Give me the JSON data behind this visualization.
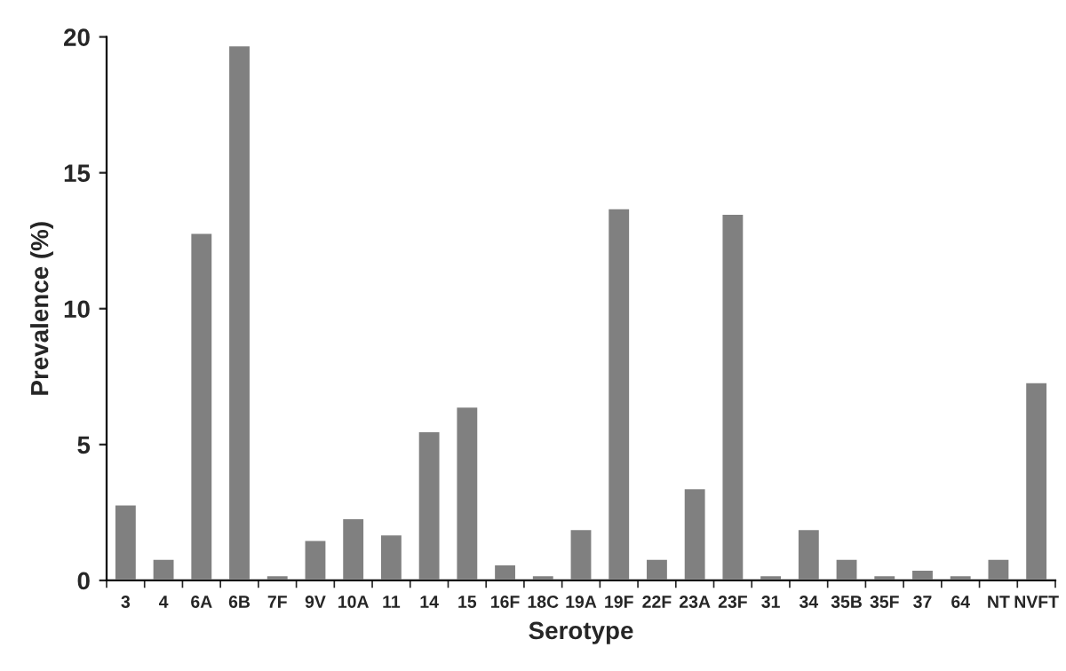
{
  "chart_data": {
    "type": "bar",
    "xlabel": "Serotype",
    "ylabel": "Prevalence (%)",
    "categories": [
      "3",
      "4",
      "6A",
      "6B",
      "7F",
      "9V",
      "10A",
      "11",
      "14",
      "15",
      "16F",
      "18C",
      "19A",
      "19F",
      "22F",
      "23A",
      "23F",
      "31",
      "34",
      "35B",
      "35F",
      "37",
      "64",
      "NT",
      "NVFT"
    ],
    "values": [
      2.8,
      0.8,
      12.8,
      19.7,
      0.2,
      1.5,
      2.3,
      1.7,
      5.5,
      6.4,
      0.6,
      0.2,
      1.9,
      13.7,
      0.8,
      3.4,
      13.5,
      0.2,
      1.9,
      0.8,
      0.2,
      0.4,
      0.2,
      0.8,
      7.3
    ],
    "color": "#808080",
    "ylim": [
      0,
      20
    ],
    "yticks": [
      0,
      5,
      10,
      15,
      20
    ],
    "grid": false
  }
}
